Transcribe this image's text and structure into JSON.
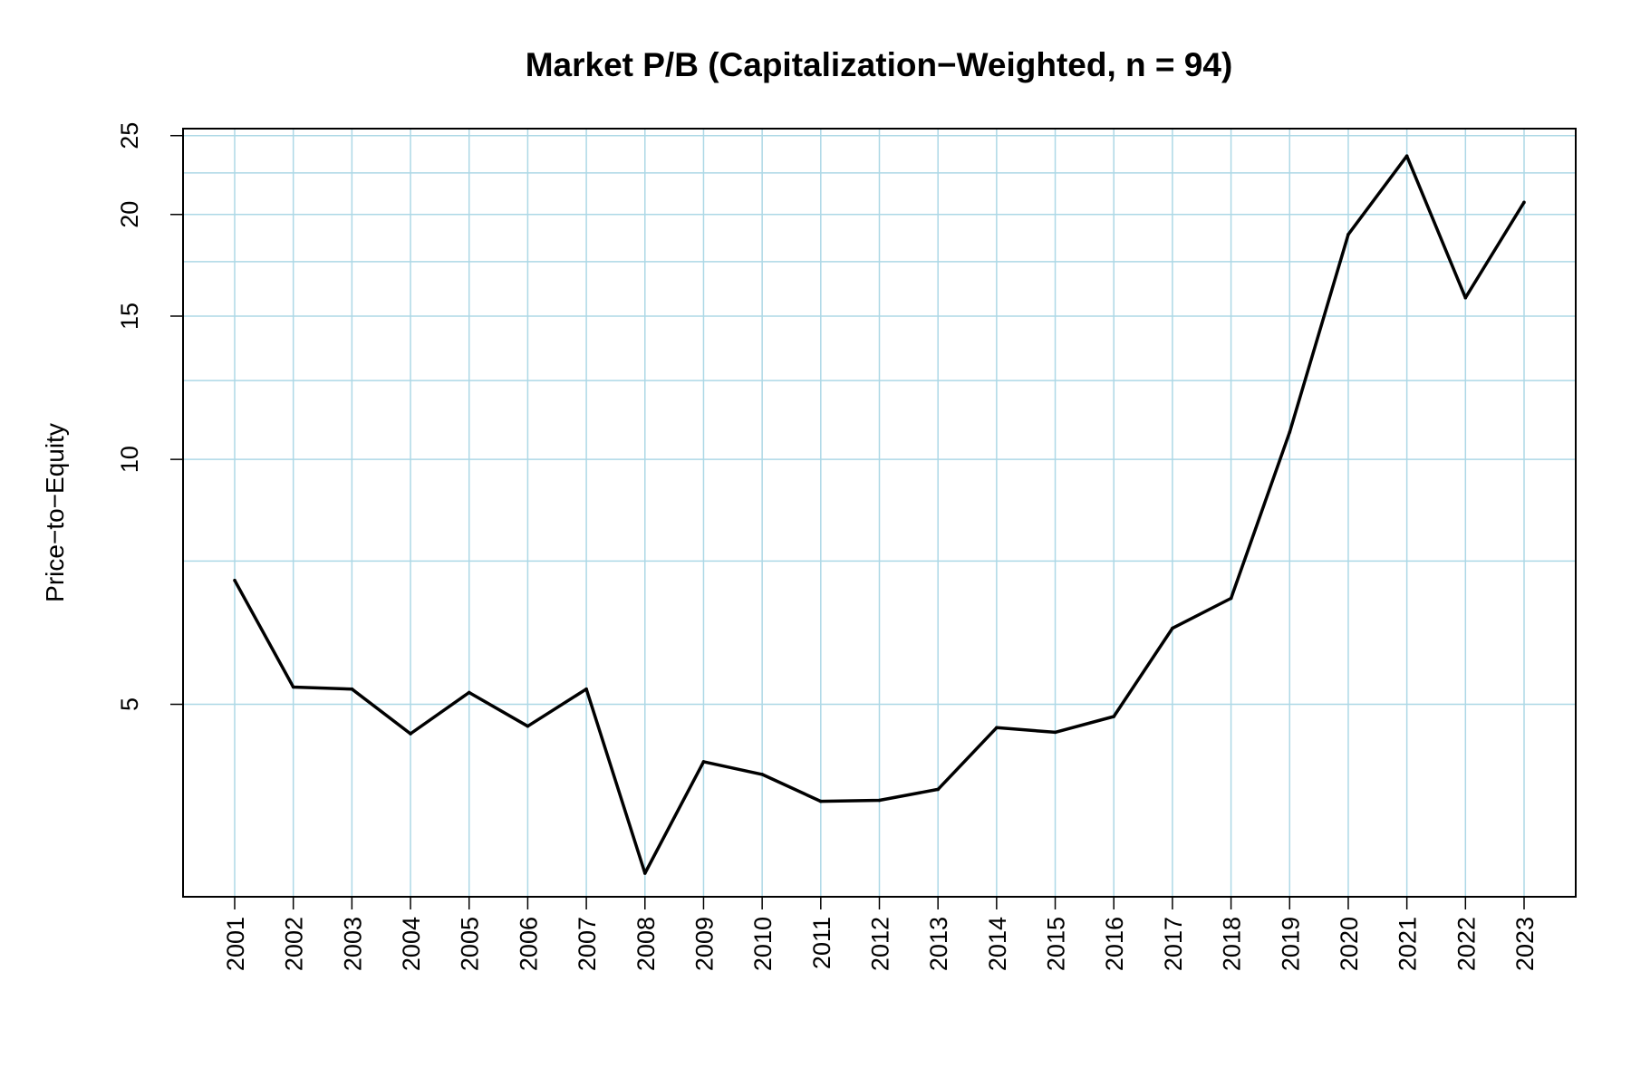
{
  "chart_data": {
    "type": "line",
    "title": "Market P/B (Capitalization−Weighted, n = 94)",
    "xlabel": "",
    "ylabel": "Price−to−Equity",
    "y_scale": "log",
    "ylim": [
      2.9,
      25.5
    ],
    "y_ticks": [
      5,
      10,
      15,
      20,
      25
    ],
    "y_tick_labels": [
      "5",
      "10",
      "15",
      "20",
      "25"
    ],
    "y_minor_gridlines": [
      7.5,
      12.5,
      17.5,
      22.5
    ],
    "grid": true,
    "categories": [
      "2001",
      "2002",
      "2003",
      "2004",
      "2005",
      "2006",
      "2007",
      "2008",
      "2009",
      "2010",
      "2011",
      "2012",
      "2013",
      "2014",
      "2015",
      "2016",
      "2017",
      "2018",
      "2019",
      "2020",
      "2021",
      "2022",
      "2023"
    ],
    "series": [
      {
        "name": "Market P/B",
        "values": [
          7.1,
          5.25,
          5.22,
          4.6,
          5.17,
          4.7,
          5.22,
          3.1,
          4.25,
          4.1,
          3.8,
          3.81,
          3.93,
          4.68,
          4.62,
          4.83,
          6.2,
          6.75,
          10.8,
          18.9,
          23.6,
          15.8,
          20.7
        ]
      }
    ],
    "colors": {
      "line": "#000000",
      "grid": "#add8e6",
      "frame": "#000000"
    }
  }
}
